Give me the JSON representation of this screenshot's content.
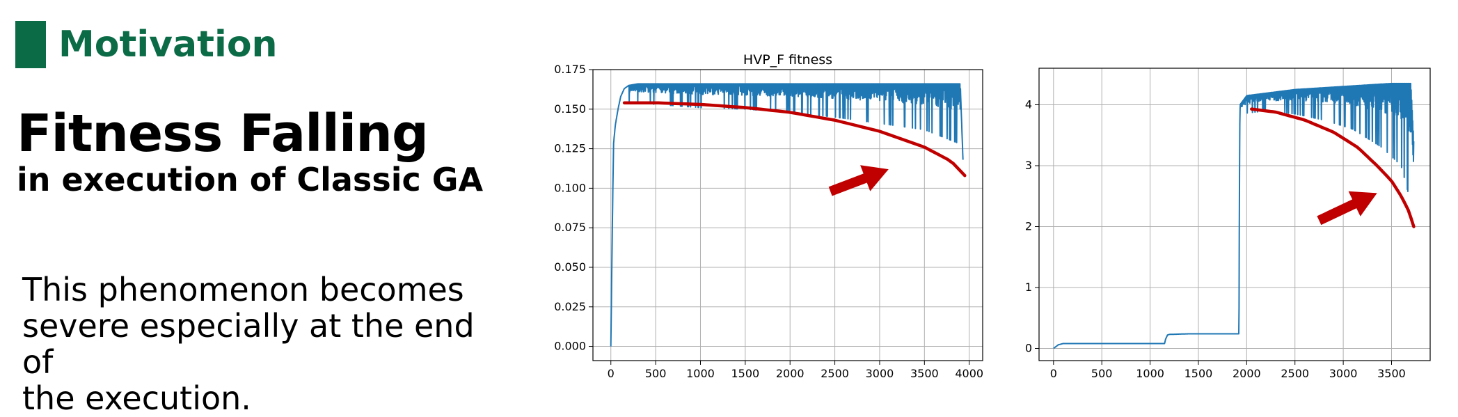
{
  "header": {
    "title": "Motivation",
    "accent_color": "#0b6b47"
  },
  "main": {
    "title": "Fitness Falling",
    "subtitle": "in execution of Classic GA",
    "body_line1": "This phenomenon becomes",
    "body_line2": "severe especially at the end of",
    "body_line3": "the execution."
  },
  "colors": {
    "series": "#1f77b4",
    "annotation": "#c00000",
    "grid": "#b0b0b0"
  },
  "chart_data": [
    {
      "type": "line",
      "title": "HVP_F fitness",
      "xlabel": "",
      "ylabel": "",
      "xlim": [
        -200,
        4150
      ],
      "ylim": [
        -0.009,
        0.175
      ],
      "xticks": [
        0,
        500,
        1000,
        1500,
        2000,
        2500,
        3000,
        3500,
        4000
      ],
      "yticks": [
        0.0,
        0.025,
        0.05,
        0.075,
        0.1,
        0.125,
        0.15,
        0.175
      ],
      "ytick_labels": [
        "0.000",
        "0.025",
        "0.050",
        "0.075",
        "0.100",
        "0.125",
        "0.150",
        "0.175"
      ],
      "grid": true,
      "series": [
        {
          "x": [
            0,
            15,
            30,
            50,
            80,
            110,
            150,
            200,
            300,
            500,
            1000,
            1500,
            2000,
            2500,
            3000,
            3500,
            3900,
            3930
          ],
          "y": [
            0.0,
            0.07,
            0.128,
            0.14,
            0.15,
            0.158,
            0.163,
            0.165,
            0.166,
            0.166,
            0.166,
            0.166,
            0.166,
            0.166,
            0.166,
            0.166,
            0.166,
            0.118
          ],
          "lower_envelope": {
            "x": [
              200,
              500,
              1000,
              1500,
              2000,
              2500,
              3000,
              3500,
              3900
            ],
            "y": [
              0.155,
              0.153,
              0.151,
              0.15,
              0.148,
              0.145,
              0.141,
              0.137,
              0.128
            ]
          }
        }
      ],
      "annotation_curve": {
        "x": [
          150,
          500,
          1000,
          1500,
          2000,
          2500,
          3000,
          3500,
          3800,
          3950
        ],
        "y": [
          0.154,
          0.154,
          0.153,
          0.151,
          0.148,
          0.143,
          0.136,
          0.126,
          0.117,
          0.108
        ]
      },
      "annotation_arrow": {
        "from": [
          2450,
          0.098
        ],
        "to": [
          3100,
          0.112
        ]
      }
    },
    {
      "type": "line",
      "title": "",
      "xlabel": "",
      "ylabel": "",
      "xlim": [
        -150,
        3900
      ],
      "ylim": [
        -0.2,
        4.6
      ],
      "xticks": [
        0,
        500,
        1000,
        1500,
        2000,
        2500,
        3000,
        3500
      ],
      "yticks": [
        0,
        1,
        2,
        3,
        4
      ],
      "ytick_labels": [
        "0",
        "1",
        "2",
        "3",
        "4"
      ],
      "grid": true,
      "series": [
        {
          "x": [
            0,
            50,
            100,
            300,
            600,
            900,
            1150,
            1160,
            1180,
            1200,
            1400,
            1700,
            1920,
            1925,
            1930,
            2000,
            2500,
            3000,
            3500,
            3700,
            3730
          ],
          "y": [
            0.0,
            0.06,
            0.08,
            0.08,
            0.08,
            0.08,
            0.08,
            0.15,
            0.22,
            0.23,
            0.24,
            0.24,
            0.24,
            2.5,
            4.0,
            4.15,
            4.25,
            4.3,
            4.35,
            4.35,
            3.4
          ],
          "lower_envelope": {
            "x": [
              1930,
              2200,
              2500,
              2800,
              3100,
              3400,
              3600,
              3730
            ],
            "y": [
              3.85,
              3.9,
              3.85,
              3.75,
              3.6,
              3.3,
              3.0,
              2.2
            ]
          }
        }
      ],
      "annotation_curve": {
        "x": [
          2050,
          2300,
          2600,
          2900,
          3150,
          3350,
          3500,
          3600,
          3680,
          3730
        ],
        "y": [
          3.93,
          3.88,
          3.75,
          3.55,
          3.3,
          3.0,
          2.75,
          2.5,
          2.25,
          2.0
        ]
      },
      "annotation_arrow": {
        "from": [
          2750,
          2.1
        ],
        "to": [
          3350,
          2.55
        ]
      }
    }
  ]
}
